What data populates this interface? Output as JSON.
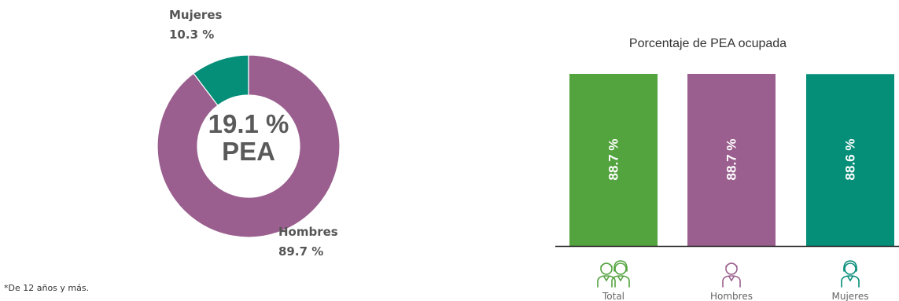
{
  "colors": {
    "total": "#53a33f",
    "hombres": "#9a5f8e",
    "mujeres": "#058e78",
    "text_dark": "#5a5a5a",
    "label_dark": "#555555",
    "axis": "#222222"
  },
  "note": "*De 12 años y más.",
  "chart_data": [
    {
      "type": "pie",
      "variant": "donut",
      "center_value": "19.1 %",
      "center_label": "PEA",
      "slices": [
        {
          "name": "Mujeres",
          "value": 10.3,
          "label": "10.3 %",
          "color_key": "mujeres"
        },
        {
          "name": "Hombres",
          "value": 89.7,
          "label": "89.7 %",
          "color_key": "hombres"
        }
      ]
    },
    {
      "type": "bar",
      "title": "Porcentaje de PEA ocupada",
      "categories": [
        "Total",
        "Hombres",
        "Mujeres"
      ],
      "values": [
        88.7,
        88.7,
        88.6
      ],
      "value_labels": [
        "88.7 %",
        "88.7 %",
        "88.6 %"
      ],
      "icons": [
        "people-pair-icon",
        "man-icon",
        "woman-icon"
      ],
      "color_keys": [
        "total",
        "hombres",
        "mujeres"
      ],
      "grid": false
    }
  ]
}
